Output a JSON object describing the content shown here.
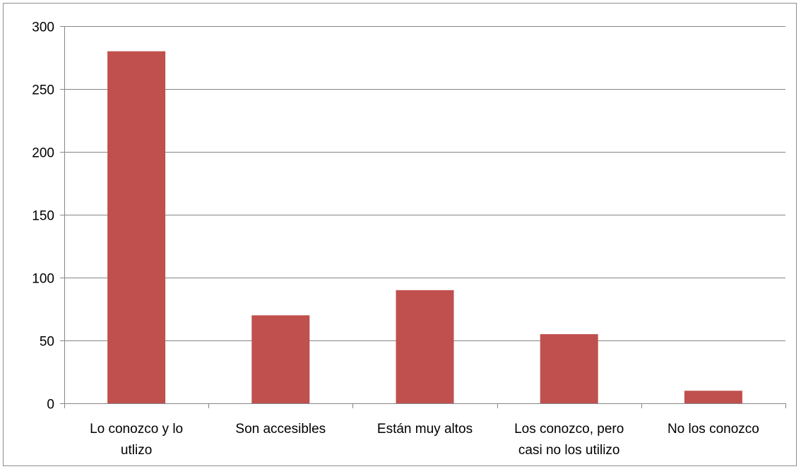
{
  "chart_data": {
    "type": "bar",
    "categories": [
      [
        "Lo conozco y lo",
        "utlizo"
      ],
      [
        "Son accesibles"
      ],
      [
        "Están muy altos"
      ],
      [
        "Los conozco, pero",
        "casi no los utilizo"
      ],
      [
        "No los conozco"
      ]
    ],
    "values": [
      280,
      70,
      90,
      55,
      10
    ],
    "ylim": [
      0,
      300
    ],
    "yticks": [
      0,
      50,
      100,
      150,
      200,
      250,
      300
    ],
    "grid": true,
    "legend": "none",
    "colors": {
      "bar": "#c0504d",
      "grid": "#868686",
      "axis": "#868686",
      "border": "#8c8c8c"
    }
  }
}
